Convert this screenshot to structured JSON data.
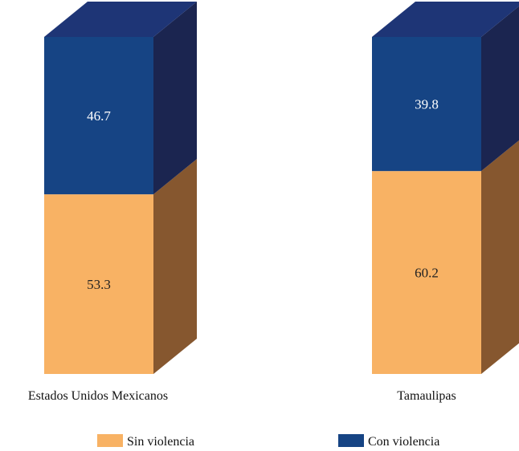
{
  "chart_data": {
    "type": "bar",
    "stacked": true,
    "style": "3d-stacked-percent",
    "categories": [
      "Estados Unidos Mexicanos",
      "Tamaulipas"
    ],
    "series": [
      {
        "name": "Sin violencia",
        "values": [
          53.3,
          60.2
        ],
        "color": "#F8B264",
        "side_color": "#86572F",
        "top_color": "#F8B264",
        "label_color": "#222222"
      },
      {
        "name": "Con violencia",
        "values": [
          46.7,
          39.8
        ],
        "color": "#164484",
        "side_color": "#1B2550",
        "top_color": "#1E3576",
        "label_color": "#ffffff"
      }
    ],
    "ylim": [
      0,
      100
    ],
    "grid": false,
    "legend_position": "bottom"
  }
}
